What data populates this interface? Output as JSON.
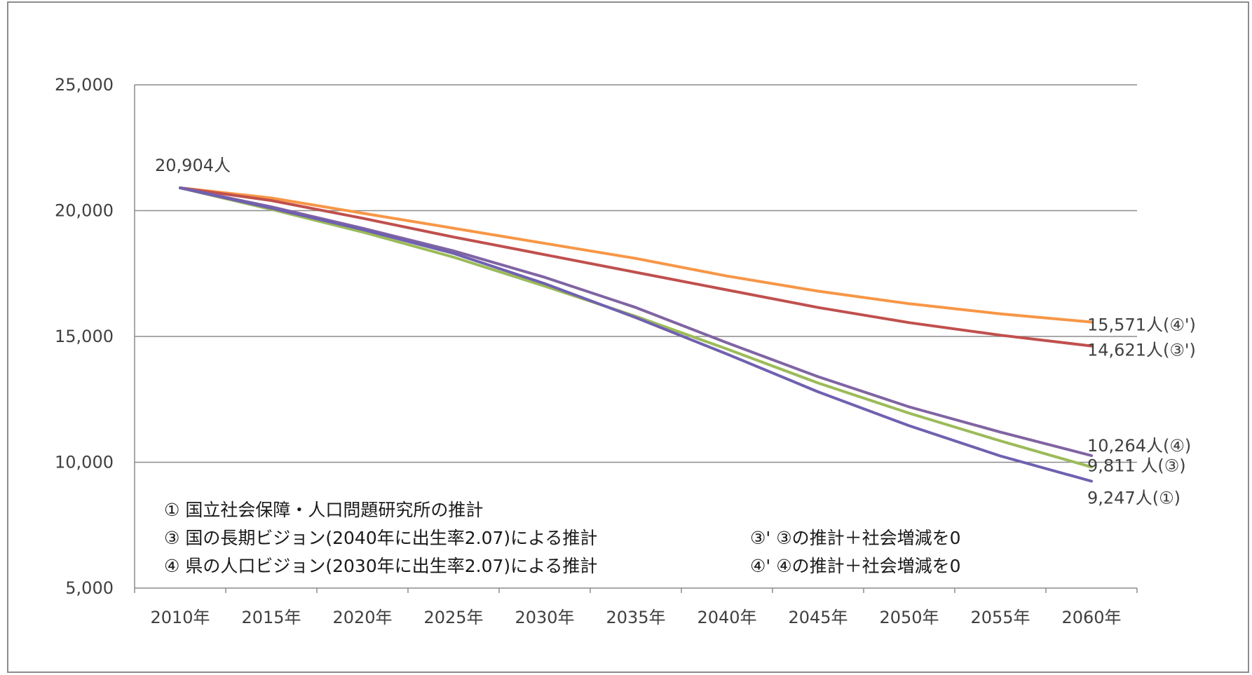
{
  "chart_data": {
    "type": "line",
    "x": [
      "2010年",
      "2015年",
      "2020年",
      "2025年",
      "2030年",
      "2035年",
      "2040年",
      "2045年",
      "2050年",
      "2055年",
      "2060年"
    ],
    "ylim": [
      5000,
      25000
    ],
    "yticks": [
      "25,000",
      "20,000",
      "15,000",
      "10,000",
      "5,000"
    ],
    "ytick_values": [
      25000,
      20000,
      15000,
      10000,
      5000
    ],
    "grid": true,
    "start_label": "20,904人",
    "series": [
      {
        "name": "④'",
        "color": "#f79646",
        "values": [
          20904,
          20500,
          19900,
          19300,
          18700,
          18100,
          17400,
          16800,
          16300,
          15900,
          15571
        ],
        "end_label": "15,571人(④')"
      },
      {
        "name": "③'",
        "color": "#c0504d",
        "values": [
          20904,
          20400,
          19700,
          18950,
          18250,
          17550,
          16850,
          16150,
          15550,
          15050,
          14621
        ],
        "end_label": "14,621人(③')"
      },
      {
        "name": "④",
        "color": "#8064a2",
        "values": [
          20904,
          20150,
          19300,
          18400,
          17350,
          16150,
          14750,
          13400,
          12200,
          11200,
          10264
        ],
        "end_label": "10,264人(④)"
      },
      {
        "name": "③",
        "color": "#9bbb59",
        "values": [
          20904,
          20050,
          19150,
          18150,
          17000,
          15800,
          14500,
          13150,
          11950,
          10850,
          9811
        ],
        "end_label": "9,811 人(③)"
      },
      {
        "name": "①",
        "color": "#7060b0",
        "values": [
          20904,
          20100,
          19250,
          18300,
          17100,
          15750,
          14300,
          12800,
          11450,
          10250,
          9247
        ],
        "end_label": "9,247人(①)"
      }
    ],
    "legend_text": [
      "①  国立社会保障・人口問題研究所の推計",
      "③  国の長期ビジョン(2040年に出生率2.07)による推計",
      "④  県の人口ビジョン(2030年に出生率2.07)による推計",
      "③' ③の推計＋社会増減を0",
      "④' ④の推計＋社会増減を0"
    ]
  }
}
